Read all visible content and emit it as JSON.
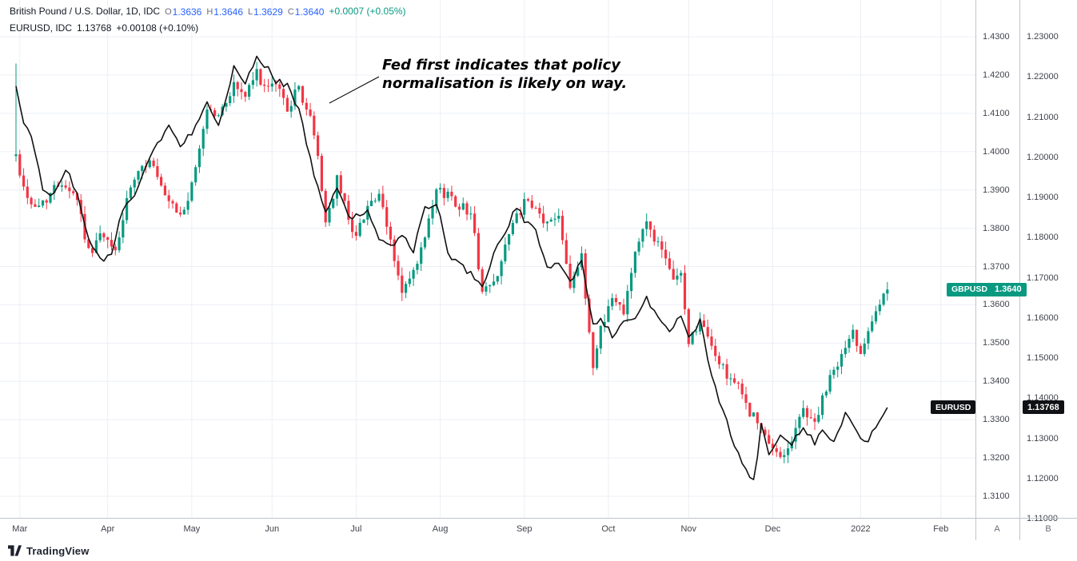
{
  "legend": {
    "gbpusd": {
      "title": "British Pound / U.S. Dollar, 1D, IDC",
      "o_label": "O",
      "o": "1.3636",
      "h_label": "H",
      "h": "1.3646",
      "l_label": "L",
      "l": "1.3629",
      "c_label": "C",
      "c": "1.3640",
      "change": "+0.0007 (+0.05%)"
    },
    "eurusd": {
      "title": "EURUSD, IDC",
      "value": "1.13768",
      "change": "+0.00108 (+0.10%)"
    }
  },
  "annotation": {
    "line1": "Fed first indicates that policy",
    "line2": "normalisation is likely on way."
  },
  "price_labels": {
    "gbpusd": {
      "symbol": "GBPUSD",
      "value": "1.3640",
      "color": "#089981"
    },
    "eurusd": {
      "symbol": "EURUSD",
      "value": "1.13768",
      "color": "#101114"
    }
  },
  "axes": {
    "scale_a": {
      "letter": "A",
      "labels": [
        "1.4300",
        "1.4200",
        "1.4100",
        "1.4000",
        "1.3900",
        "1.3800",
        "1.3700",
        "1.3600",
        "1.3500",
        "1.3400",
        "1.3300",
        "1.3200",
        "1.3100"
      ]
    },
    "scale_b": {
      "letter": "B",
      "labels": [
        "1.23000",
        "1.22000",
        "1.21000",
        "1.20000",
        "1.19000",
        "1.18000",
        "1.17000",
        "1.16000",
        "1.15000",
        "1.14000",
        "1.13000",
        "1.12000",
        "1.11000"
      ]
    },
    "time": {
      "months": [
        {
          "label": "Mar",
          "day": 1
        },
        {
          "label": "Apr",
          "day": 24
        },
        {
          "label": "May",
          "day": 46
        },
        {
          "label": "Jun",
          "day": 67
        },
        {
          "label": "Jul",
          "day": 89
        },
        {
          "label": "Aug",
          "day": 111
        },
        {
          "label": "Sep",
          "day": 133
        },
        {
          "label": "Oct",
          "day": 155
        },
        {
          "label": "Nov",
          "day": 176
        },
        {
          "label": "Dec",
          "day": 198
        },
        {
          "label": "2022",
          "day": 221
        },
        {
          "label": "Feb",
          "day": 242
        }
      ]
    }
  },
  "footer": {
    "brand": "TradingView"
  },
  "colors": {
    "up": "#089981",
    "down": "#f23645",
    "eurusd_line": "#111111",
    "ohlc_values": "#2962ff",
    "change_positive": "#089981",
    "grid": "#eceff5"
  },
  "chart_data": {
    "type": "candlestick",
    "title": "British Pound / U.S. Dollar, 1D, IDC",
    "overlay": "EURUSD, IDC daily close line on right scale",
    "annotation": "Fed first indicates that policy normalisation is likely on way.",
    "seed": 42,
    "last_day_index": 228,
    "first_candle_high": 1.423,
    "x_tick_labels": [
      "Mar",
      "Apr",
      "May",
      "Jun",
      "Jul",
      "Aug",
      "Sep",
      "Oct",
      "Nov",
      "Dec",
      "2022",
      "Feb"
    ],
    "scale_a_axis": {
      "min": 1.31,
      "max": 1.43,
      "tick_step": 0.01
    },
    "scale_b_axis": {
      "min": 1.11,
      "max": 1.23,
      "tick_step": 0.01
    },
    "series": [
      {
        "name": "GBPUSD",
        "type": "candlestick",
        "price_scale": "A",
        "up_color": "#089981",
        "down_color": "#f23645",
        "open": 1.3636,
        "high": 1.3646,
        "low": 1.3629,
        "last": 1.364,
        "close_keypoints": [
          [
            0,
            1.399
          ],
          [
            2,
            1.3905
          ],
          [
            5,
            1.385
          ],
          [
            8,
            1.388
          ],
          [
            12,
            1.3925
          ],
          [
            16,
            1.388
          ],
          [
            19,
            1.3735
          ],
          [
            22,
            1.378
          ],
          [
            26,
            1.374
          ],
          [
            30,
            1.3905
          ],
          [
            35,
            1.3985
          ],
          [
            39,
            1.3875
          ],
          [
            43,
            1.383
          ],
          [
            46,
            1.3905
          ],
          [
            50,
            1.4115
          ],
          [
            53,
            1.409
          ],
          [
            57,
            1.4175
          ],
          [
            60,
            1.4145
          ],
          [
            63,
            1.4205
          ],
          [
            66,
            1.4155
          ],
          [
            68,
            1.418
          ],
          [
            71,
            1.4115
          ],
          [
            74,
            1.4165
          ],
          [
            77,
            1.4085
          ],
          [
            79,
            1.399
          ],
          [
            81,
            1.3815
          ],
          [
            84,
            1.3925
          ],
          [
            87,
            1.383
          ],
          [
            89,
            1.3775
          ],
          [
            92,
            1.3865
          ],
          [
            95,
            1.388
          ],
          [
            98,
            1.3765
          ],
          [
            101,
            1.363
          ],
          [
            104,
            1.368
          ],
          [
            107,
            1.377
          ],
          [
            110,
            1.3895
          ],
          [
            113,
            1.389
          ],
          [
            116,
            1.386
          ],
          [
            119,
            1.3845
          ],
          [
            122,
            1.3635
          ],
          [
            125,
            1.3655
          ],
          [
            128,
            1.3755
          ],
          [
            131,
            1.383
          ],
          [
            133,
            1.3865
          ],
          [
            136,
            1.3845
          ],
          [
            139,
            1.381
          ],
          [
            142,
            1.384
          ],
          [
            145,
            1.3655
          ],
          [
            148,
            1.372
          ],
          [
            151,
            1.3435
          ],
          [
            153,
            1.3545
          ],
          [
            156,
            1.3615
          ],
          [
            159,
            1.359
          ],
          [
            162,
            1.374
          ],
          [
            165,
            1.3815
          ],
          [
            168,
            1.376
          ],
          [
            171,
            1.368
          ],
          [
            174,
            1.3675
          ],
          [
            176,
            1.3505
          ],
          [
            179,
            1.3555
          ],
          [
            182,
            1.349
          ],
          [
            185,
            1.343
          ],
          [
            188,
            1.34
          ],
          [
            191,
            1.334
          ],
          [
            194,
            1.329
          ],
          [
            197,
            1.323
          ],
          [
            200,
            1.3205
          ],
          [
            203,
            1.3245
          ],
          [
            206,
            1.333
          ],
          [
            209,
            1.329
          ],
          [
            211,
            1.335
          ],
          [
            214,
            1.343
          ],
          [
            217,
            1.3485
          ],
          [
            219,
            1.353
          ],
          [
            221,
            1.3475
          ],
          [
            223,
            1.3545
          ],
          [
            225,
            1.359
          ],
          [
            227,
            1.362
          ],
          [
            228,
            1.364
          ]
        ]
      },
      {
        "name": "EURUSD",
        "type": "line",
        "price_scale": "B",
        "color": "#111111",
        "last": 1.13768,
        "keypoints": [
          [
            0,
            1.217
          ],
          [
            2,
            1.209
          ],
          [
            4,
            1.205
          ],
          [
            7,
            1.192
          ],
          [
            10,
            1.1905
          ],
          [
            13,
            1.1975
          ],
          [
            16,
            1.191
          ],
          [
            19,
            1.179
          ],
          [
            23,
            1.1735
          ],
          [
            25,
            1.1765
          ],
          [
            28,
            1.187
          ],
          [
            31,
            1.1905
          ],
          [
            34,
            1.198
          ],
          [
            37,
            1.203
          ],
          [
            40,
            1.208
          ],
          [
            43,
            1.2025
          ],
          [
            46,
            1.206
          ],
          [
            50,
            1.2145
          ],
          [
            53,
            1.2075
          ],
          [
            57,
            1.222
          ],
          [
            60,
            1.2185
          ],
          [
            63,
            1.225
          ],
          [
            66,
            1.222
          ],
          [
            68,
            1.219
          ],
          [
            71,
            1.218
          ],
          [
            74,
            1.212
          ],
          [
            77,
            1.1995
          ],
          [
            79,
            1.192
          ],
          [
            81,
            1.1865
          ],
          [
            84,
            1.193
          ],
          [
            87,
            1.1855
          ],
          [
            90,
            1.185
          ],
          [
            92,
            1.1875
          ],
          [
            95,
            1.179
          ],
          [
            98,
            1.1775
          ],
          [
            101,
            1.1805
          ],
          [
            104,
            1.177
          ],
          [
            107,
            1.187
          ],
          [
            110,
            1.189
          ],
          [
            113,
            1.176
          ],
          [
            116,
            1.1735
          ],
          [
            119,
            1.171
          ],
          [
            122,
            1.168
          ],
          [
            125,
            1.1755
          ],
          [
            128,
            1.1815
          ],
          [
            131,
            1.188
          ],
          [
            133,
            1.184
          ],
          [
            136,
            1.1815
          ],
          [
            139,
            1.173
          ],
          [
            142,
            1.1735
          ],
          [
            145,
            1.169
          ],
          [
            148,
            1.174
          ],
          [
            151,
            1.158
          ],
          [
            153,
            1.16
          ],
          [
            156,
            1.1555
          ],
          [
            159,
            1.159
          ],
          [
            162,
            1.16
          ],
          [
            165,
            1.165
          ],
          [
            168,
            1.16
          ],
          [
            171,
            1.156
          ],
          [
            174,
            1.161
          ],
          [
            176,
            1.155
          ],
          [
            179,
            1.159
          ],
          [
            182,
            1.145
          ],
          [
            185,
            1.137
          ],
          [
            188,
            1.128
          ],
          [
            191,
            1.122
          ],
          [
            193,
            1.119
          ],
          [
            195,
            1.133
          ],
          [
            197,
            1.126
          ],
          [
            200,
            1.131
          ],
          [
            203,
            1.129
          ],
          [
            206,
            1.133
          ],
          [
            209,
            1.129
          ],
          [
            211,
            1.132
          ],
          [
            214,
            1.129
          ],
          [
            217,
            1.136
          ],
          [
            219,
            1.133
          ],
          [
            221,
            1.13
          ],
          [
            223,
            1.129
          ],
          [
            225,
            1.133
          ],
          [
            228,
            1.13768
          ]
        ]
      }
    ]
  }
}
